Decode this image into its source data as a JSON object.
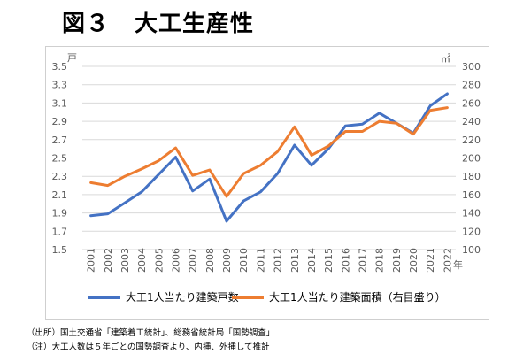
{
  "title": {
    "prefix": "図３",
    "main": "大工生産性"
  },
  "notes": {
    "source": "（出所）国土交通省「建築着工統計」、総務省統計局「国勢調査」",
    "note": "（注）大工人数は５年ごとの国勢調査より、内挿、外挿して推計"
  },
  "colors": {
    "series1": "#4472C4",
    "series2": "#ED7D31",
    "grid": "#d9d9d9",
    "axis": "#595959"
  },
  "chart_data": {
    "type": "line",
    "x": [
      "2001",
      "2002",
      "2003",
      "2004",
      "2005",
      "2006",
      "2007",
      "2008",
      "2009",
      "2010",
      "2011",
      "2012",
      "2013",
      "2014",
      "2015",
      "2016",
      "2017",
      "2018",
      "2019",
      "2020",
      "2021",
      "2022"
    ],
    "x_unit": "年",
    "y_left": {
      "unit": "戸",
      "ylim": [
        1.5,
        3.5
      ],
      "ticks": [
        "1.5",
        "1.7",
        "1.9",
        "2.1",
        "2.3",
        "2.5",
        "2.7",
        "2.9",
        "3.1",
        "3.3",
        "3.5"
      ]
    },
    "y_right": {
      "unit": "㎡",
      "ylim": [
        100,
        300
      ],
      "ticks": [
        "100",
        "120",
        "140",
        "160",
        "180",
        "200",
        "220",
        "240",
        "260",
        "280",
        "300"
      ]
    },
    "grid": true,
    "legend_position": "bottom",
    "series": [
      {
        "name": "大工1人当たり建築戸数",
        "axis": "left",
        "values": [
          1.87,
          1.89,
          2.01,
          2.13,
          2.32,
          2.51,
          2.14,
          2.27,
          1.81,
          2.03,
          2.13,
          2.33,
          2.64,
          2.42,
          2.6,
          2.85,
          2.87,
          2.99,
          2.88,
          2.77,
          3.07,
          3.2
        ]
      },
      {
        "name": "大工1人当たり建築面積（右目盛り）",
        "axis": "right",
        "values": [
          173,
          170,
          180,
          188,
          197,
          211,
          181,
          187,
          158,
          183,
          192,
          207,
          234,
          203,
          213,
          229,
          229,
          240,
          238,
          226,
          252,
          255
        ]
      }
    ]
  }
}
